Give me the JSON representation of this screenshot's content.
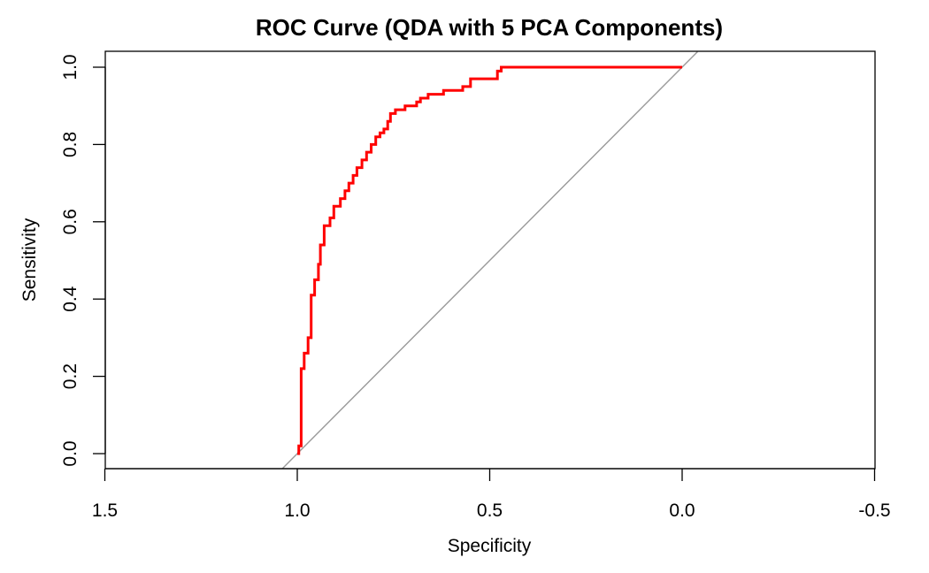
{
  "chart_data": {
    "type": "line",
    "title": "ROC Curve (QDA with 5 PCA Components)",
    "xlabel": "Specificity",
    "ylabel": "Sensitivity",
    "xlim": [
      1.5,
      -0.5
    ],
    "ylim": [
      0.0,
      1.0
    ],
    "x_reversed": true,
    "grid": false,
    "x_ticks": [
      1.5,
      1.0,
      0.5,
      0.0,
      -0.5
    ],
    "x_tick_labels": [
      "1.5",
      "1.0",
      "0.5",
      "0.0",
      "-0.5"
    ],
    "y_ticks": [
      0.0,
      0.2,
      0.4,
      0.6,
      0.8,
      1.0
    ],
    "y_tick_labels": [
      "0.0",
      "0.2",
      "0.4",
      "0.6",
      "0.8",
      "1.0"
    ],
    "series": [
      {
        "color": "#ff0000",
        "step": true,
        "specificity": [
          1.0,
          0.996,
          0.996,
          0.99,
          0.99,
          0.982,
          0.982,
          0.972,
          0.972,
          0.964,
          0.964,
          0.955,
          0.955,
          0.945,
          0.945,
          0.94,
          0.94,
          0.93,
          0.93,
          0.915,
          0.915,
          0.905,
          0.905,
          0.888,
          0.888,
          0.876,
          0.876,
          0.866,
          0.866,
          0.855,
          0.855,
          0.845,
          0.845,
          0.832,
          0.832,
          0.82,
          0.82,
          0.808,
          0.808,
          0.796,
          0.796,
          0.785,
          0.785,
          0.775,
          0.775,
          0.765,
          0.765,
          0.758,
          0.758,
          0.745,
          0.745,
          0.72,
          0.72,
          0.69,
          0.69,
          0.68,
          0.68,
          0.66,
          0.66,
          0.62,
          0.62,
          0.62,
          0.57,
          0.57,
          0.55,
          0.55,
          0.48,
          0.48,
          0.47,
          0.47,
          0.455,
          0.455,
          0.0
        ],
        "sensitivity": [
          0.0,
          0.0,
          0.02,
          0.02,
          0.22,
          0.22,
          0.26,
          0.26,
          0.3,
          0.3,
          0.41,
          0.41,
          0.45,
          0.45,
          0.49,
          0.49,
          0.54,
          0.54,
          0.59,
          0.59,
          0.61,
          0.61,
          0.64,
          0.64,
          0.66,
          0.66,
          0.68,
          0.68,
          0.7,
          0.7,
          0.72,
          0.72,
          0.74,
          0.74,
          0.76,
          0.76,
          0.78,
          0.78,
          0.8,
          0.8,
          0.82,
          0.82,
          0.83,
          0.83,
          0.84,
          0.84,
          0.86,
          0.86,
          0.88,
          0.88,
          0.89,
          0.89,
          0.9,
          0.9,
          0.91,
          0.91,
          0.92,
          0.92,
          0.93,
          0.93,
          0.93,
          0.94,
          0.94,
          0.95,
          0.95,
          0.97,
          0.97,
          0.99,
          0.99,
          1.0,
          1.0,
          1.0,
          1.0
        ]
      }
    ],
    "reference_line": {
      "color": "#999999",
      "specificity": [
        1.04,
        -0.04
      ],
      "sensitivity": [
        -0.04,
        1.04
      ]
    }
  }
}
